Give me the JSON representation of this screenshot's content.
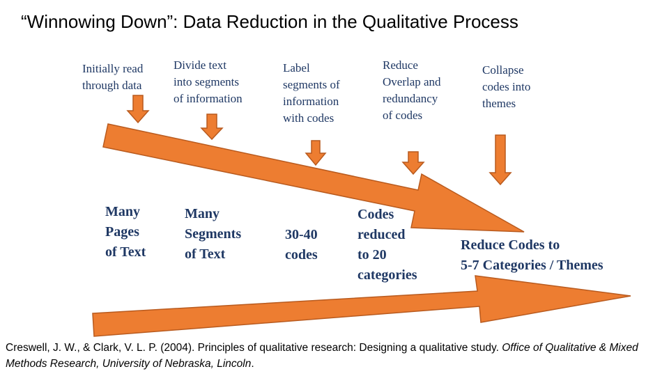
{
  "title": "“Winnowing Down”: Data Reduction in the Qualitative Process",
  "steps": [
    "Initially read\nthrough data",
    "Divide text\ninto segments\nof information",
    "Label\nsegments of\n information\nwith codes",
    "Reduce\nOverlap and\nredundancy\nof codes",
    "Collapse\ncodes into\nthemes"
  ],
  "results": [
    "Many\nPages\nof Text",
    "Many\nSegments\nof Text",
    "30-40\ncodes",
    "Codes\nreduced\nto 20\ncategories",
    "Reduce Codes to\n5-7 Categories / Themes"
  ],
  "citation": {
    "normal": "Creswell, J. W., & Clark, V. L. P. (2004). Principles of qualitative research: Designing a qualitative study. ",
    "italic": "Office of Qualitative & Mixed Methods Research, University of Nebraska, Lincoln",
    "end": "."
  },
  "colors": {
    "arrow_fill": "#ed7d31",
    "arrow_stroke": "#b85a1e",
    "step_text": "#1f3864"
  }
}
